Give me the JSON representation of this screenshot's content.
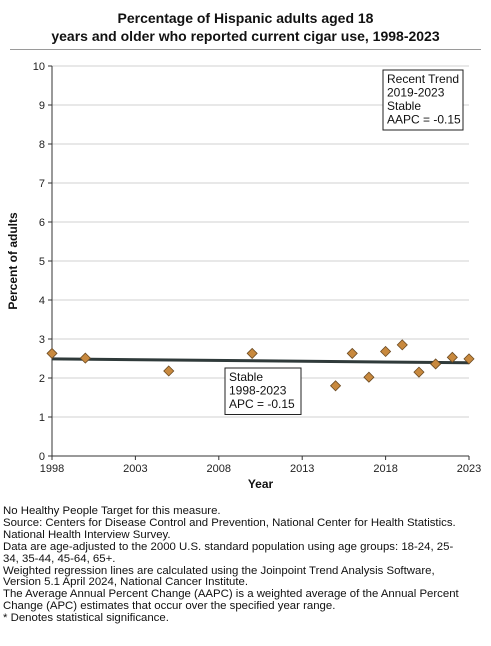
{
  "chart_data": {
    "type": "scatter",
    "title_lines": [
      "Percentage of Hispanic adults aged 18",
      "years and older who reported current cigar use, 1998-2023"
    ],
    "xlabel": "Year",
    "ylabel": "Percent of adults",
    "xlim": [
      1998,
      2023
    ],
    "ylim": [
      0,
      10
    ],
    "x_ticks": [
      1998,
      2003,
      2008,
      2013,
      2018,
      2023
    ],
    "y_ticks": [
      0,
      1,
      2,
      3,
      4,
      5,
      6,
      7,
      8,
      9,
      10
    ],
    "grid": "horizontal",
    "series": [
      {
        "x": [
          1998,
          2000,
          2005,
          2010,
          2015,
          2016,
          2017,
          2018,
          2019,
          2020,
          2021,
          2022,
          2023
        ],
        "y": [
          2.63,
          2.51,
          2.18,
          2.63,
          1.8,
          2.63,
          2.02,
          2.68,
          2.85,
          2.15,
          2.36,
          2.53,
          2.49
        ],
        "marker": "diamond",
        "color": "#c8893e"
      }
    ],
    "trend_lines": [
      {
        "x": [
          1998,
          2023
        ],
        "y": [
          2.49,
          2.39
        ],
        "color": "#2f3a3a"
      }
    ],
    "annotations": [
      {
        "lines": [
          "Recent Trend",
          "2019-2023",
          "Stable",
          "AAPC = -0.15"
        ]
      },
      {
        "lines": [
          "Stable",
          "1998-2023",
          "APC = -0.15"
        ]
      }
    ]
  },
  "footnotes": [
    "No Healthy People Target for this measure.",
    "Source: Centers for Disease Control and Prevention, National Center for Health Statistics.",
    "National Health Interview Survey.",
    "Data are age-adjusted to the 2000 U.S. standard population using age groups: 18-24, 25-",
    "34, 35-44, 45-64, 65+.",
    "Weighted regression lines are calculated using the Joinpoint Trend Analysis Software,",
    "Version 5.1 April 2024, National Cancer Institute.",
    "The Average Annual Percent Change (AAPC) is a weighted average of the Annual Percent",
    "Change (APC) estimates that occur over the specified year range.",
    "* Denotes statistical significance."
  ]
}
